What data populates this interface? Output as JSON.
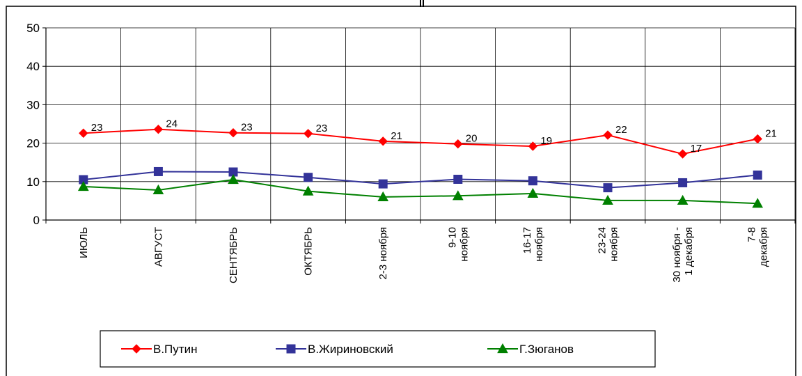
{
  "chart_data": {
    "type": "line",
    "title": "",
    "xlabel": "",
    "ylabel": "",
    "ylim": [
      0,
      50
    ],
    "yticks": [
      "0",
      "10",
      "20",
      "30",
      "40",
      "50"
    ],
    "grid": true,
    "legend_position": "bottom",
    "categories": [
      [
        "ИЮЛЬ"
      ],
      [
        "АВГУСТ"
      ],
      [
        "СЕНТЯБРЬ"
      ],
      [
        "ОКТЯБРЬ"
      ],
      [
        "2-3 ноября"
      ],
      [
        "9-10",
        "ноября"
      ],
      [
        "16-17",
        "ноября"
      ],
      [
        "23-24",
        "ноября"
      ],
      [
        "30 ноября -",
        "1 декабря"
      ],
      [
        "7-8",
        "декабря"
      ]
    ],
    "series": [
      {
        "name": "В.Путин",
        "color": "#ff0000",
        "marker": "diamond",
        "values": [
          22.6,
          23.6,
          22.7,
          22.5,
          20.5,
          19.8,
          19.2,
          22.1,
          17.2,
          21.1
        ],
        "labels": [
          "23",
          "24",
          "23",
          "23",
          "21",
          "20",
          "19",
          "22",
          "17",
          "21"
        ]
      },
      {
        "name": "В.Жириновский",
        "color": "#333399",
        "marker": "square",
        "values": [
          10.5,
          12.6,
          12.5,
          11.1,
          9.4,
          10.6,
          10.2,
          8.4,
          9.7,
          11.7
        ]
      },
      {
        "name": "Г.Зюганов",
        "color": "#008000",
        "marker": "triangle",
        "values": [
          8.7,
          7.8,
          10.5,
          7.5,
          6.0,
          6.3,
          6.9,
          5.1,
          5.1,
          4.3
        ]
      }
    ]
  }
}
